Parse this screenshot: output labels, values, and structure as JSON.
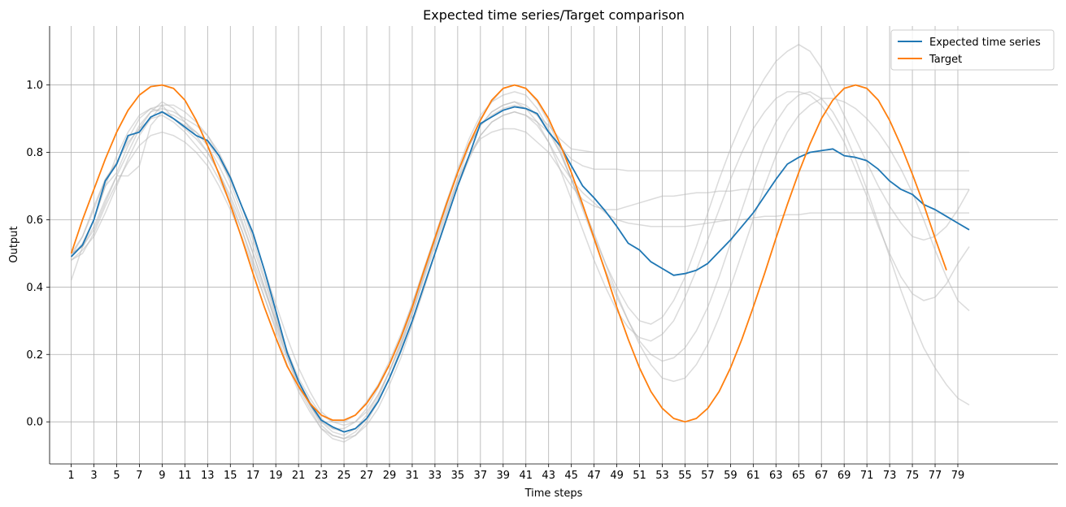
{
  "chart_data": {
    "type": "line",
    "title": "Expected time series/Target comparison",
    "xlabel": "Time steps",
    "ylabel": "Output",
    "xlim": [
      -0.9,
      87.8
    ],
    "ylim": [
      -0.125,
      1.175
    ],
    "grid": true,
    "legend_position": "top-right",
    "x_ticks": [
      1,
      3,
      5,
      7,
      9,
      11,
      13,
      15,
      17,
      19,
      21,
      23,
      25,
      27,
      29,
      31,
      33,
      35,
      37,
      39,
      41,
      43,
      45,
      47,
      49,
      51,
      53,
      55,
      57,
      59,
      61,
      63,
      65,
      67,
      69,
      71,
      73,
      75,
      77,
      79
    ],
    "y_ticks": [
      0.0,
      0.2,
      0.4,
      0.6,
      0.8,
      1.0
    ],
    "y_tick_labels": [
      "0.0",
      "0.2",
      "0.4",
      "0.6",
      "0.8",
      "1.0"
    ],
    "series": [
      {
        "name": "Expected time series",
        "color": "#1f77b4",
        "x_start": 1,
        "values": [
          0.49,
          0.525,
          0.6,
          0.715,
          0.765,
          0.85,
          0.86,
          0.905,
          0.92,
          0.9,
          0.875,
          0.85,
          0.835,
          0.79,
          0.725,
          0.64,
          0.56,
          0.45,
          0.33,
          0.205,
          0.12,
          0.055,
          0.005,
          -0.015,
          -0.03,
          -0.02,
          0.01,
          0.06,
          0.13,
          0.21,
          0.3,
          0.4,
          0.5,
          0.6,
          0.7,
          0.79,
          0.885,
          0.905,
          0.925,
          0.935,
          0.93,
          0.915,
          0.86,
          0.82,
          0.76,
          0.7,
          0.665,
          0.625,
          0.58,
          0.53,
          0.51,
          0.475,
          0.455,
          0.435,
          0.44,
          0.45,
          0.47,
          0.505,
          0.54,
          0.58,
          0.62,
          0.67,
          0.72,
          0.765,
          0.785,
          0.8,
          0.805,
          0.81,
          0.79,
          0.785,
          0.775,
          0.75,
          0.715,
          0.69,
          0.675,
          0.645,
          0.63,
          0.61,
          0.59,
          0.57
        ]
      },
      {
        "name": "Target",
        "color": "#ff7f0e",
        "x_start": 1,
        "values": [
          0.5,
          0.6,
          0.69,
          0.78,
          0.86,
          0.925,
          0.97,
          0.995,
          1.0,
          0.99,
          0.955,
          0.895,
          0.82,
          0.735,
          0.645,
          0.545,
          0.44,
          0.34,
          0.25,
          0.165,
          0.105,
          0.055,
          0.02,
          0.005,
          0.005,
          0.02,
          0.055,
          0.105,
          0.17,
          0.25,
          0.34,
          0.445,
          0.545,
          0.645,
          0.74,
          0.825,
          0.895,
          0.955,
          0.99,
          1.0,
          0.99,
          0.955,
          0.9,
          0.825,
          0.74,
          0.645,
          0.545,
          0.445,
          0.34,
          0.245,
          0.16,
          0.09,
          0.04,
          0.01,
          0.0,
          0.01,
          0.04,
          0.09,
          0.16,
          0.245,
          0.34,
          0.44,
          0.545,
          0.645,
          0.74,
          0.825,
          0.9,
          0.955,
          0.99,
          1.0,
          0.99,
          0.955,
          0.895,
          0.82,
          0.735,
          0.645,
          0.545,
          0.45
        ]
      }
    ],
    "background_samples": [
      {
        "x_start": 1,
        "values": [
          0.5,
          0.55,
          0.64,
          0.72,
          0.77,
          0.84,
          0.9,
          0.93,
          0.92,
          0.91,
          0.89,
          0.86,
          0.82,
          0.76,
          0.69,
          0.6,
          0.5,
          0.4,
          0.29,
          0.19,
          0.1,
          0.04,
          -0.02,
          -0.04,
          -0.05,
          -0.03,
          0.01,
          0.07,
          0.15,
          0.24,
          0.34,
          0.44,
          0.54,
          0.64,
          0.74,
          0.82,
          0.88,
          0.91,
          0.93,
          0.94,
          0.93,
          0.91,
          0.88,
          0.84,
          0.81,
          0.805,
          0.8,
          0.8,
          0.8,
          0.8,
          0.8,
          0.8,
          0.8,
          0.8,
          0.8,
          0.8,
          0.8,
          0.8,
          0.8,
          0.8,
          0.8,
          0.8,
          0.8,
          0.8,
          0.8,
          0.8,
          0.8,
          0.8,
          0.8,
          0.8,
          0.8,
          0.8,
          0.8,
          0.8,
          0.8,
          0.8,
          0.8,
          0.8,
          0.8,
          0.8
        ]
      },
      {
        "x_start": 1,
        "values": [
          0.42,
          0.52,
          0.6,
          0.7,
          0.74,
          0.82,
          0.88,
          0.92,
          0.93,
          0.92,
          0.9,
          0.88,
          0.85,
          0.8,
          0.73,
          0.64,
          0.54,
          0.43,
          0.32,
          0.21,
          0.12,
          0.06,
          0.01,
          -0.02,
          -0.03,
          -0.02,
          0.01,
          0.06,
          0.13,
          0.21,
          0.3,
          0.4,
          0.5,
          0.6,
          0.7,
          0.78,
          0.85,
          0.89,
          0.91,
          0.92,
          0.91,
          0.89,
          0.86,
          0.82,
          0.78,
          0.76,
          0.75,
          0.75,
          0.75,
          0.745,
          0.745,
          0.745,
          0.745,
          0.745,
          0.745,
          0.745,
          0.745,
          0.745,
          0.745,
          0.745,
          0.745,
          0.745,
          0.745,
          0.745,
          0.745,
          0.745,
          0.745,
          0.745,
          0.745,
          0.745,
          0.745,
          0.745,
          0.745,
          0.745,
          0.745,
          0.745,
          0.745,
          0.745,
          0.745,
          0.745
        ]
      },
      {
        "x_start": 1,
        "values": [
          0.49,
          0.53,
          0.6,
          0.7,
          0.79,
          0.86,
          0.91,
          0.93,
          0.94,
          0.9,
          0.87,
          0.84,
          0.8,
          0.74,
          0.67,
          0.59,
          0.5,
          0.4,
          0.3,
          0.2,
          0.11,
          0.05,
          0.0,
          -0.03,
          -0.04,
          -0.02,
          0.02,
          0.08,
          0.15,
          0.23,
          0.32,
          0.42,
          0.52,
          0.62,
          0.71,
          0.79,
          0.85,
          0.89,
          0.91,
          0.92,
          0.91,
          0.88,
          0.83,
          0.77,
          0.72,
          0.68,
          0.65,
          0.62,
          0.6,
          0.59,
          0.585,
          0.58,
          0.58,
          0.58,
          0.58,
          0.585,
          0.59,
          0.595,
          0.6,
          0.6,
          0.605,
          0.61,
          0.61,
          0.615,
          0.615,
          0.62,
          0.62,
          0.62,
          0.62,
          0.62,
          0.62,
          0.62,
          0.62,
          0.62,
          0.62,
          0.62,
          0.62,
          0.62,
          0.62,
          0.62
        ]
      },
      {
        "x_start": 1,
        "values": [
          0.5,
          0.52,
          0.57,
          0.65,
          0.73,
          0.8,
          0.87,
          0.92,
          0.95,
          0.93,
          0.89,
          0.85,
          0.8,
          0.74,
          0.66,
          0.57,
          0.47,
          0.37,
          0.27,
          0.17,
          0.09,
          0.03,
          -0.02,
          -0.05,
          -0.06,
          -0.04,
          0.0,
          0.06,
          0.13,
          0.22,
          0.32,
          0.43,
          0.54,
          0.65,
          0.75,
          0.84,
          0.91,
          0.95,
          0.97,
          0.98,
          0.97,
          0.93,
          0.87,
          0.8,
          0.72,
          0.64,
          0.56,
          0.47,
          0.38,
          0.3,
          0.23,
          0.17,
          0.13,
          0.12,
          0.13,
          0.17,
          0.23,
          0.31,
          0.4,
          0.5,
          0.6,
          0.7,
          0.79,
          0.86,
          0.91,
          0.94,
          0.96,
          0.96,
          0.95,
          0.93,
          0.9,
          0.86,
          0.81,
          0.75,
          0.68,
          0.6,
          0.51,
          0.43,
          0.36,
          0.33
        ]
      },
      {
        "x_start": 1,
        "values": [
          0.48,
          0.51,
          0.55,
          0.62,
          0.7,
          0.78,
          0.85,
          0.9,
          0.94,
          0.94,
          0.92,
          0.89,
          0.85,
          0.79,
          0.71,
          0.62,
          0.52,
          0.42,
          0.31,
          0.21,
          0.12,
          0.05,
          -0.01,
          -0.04,
          -0.05,
          -0.04,
          -0.01,
          0.04,
          0.11,
          0.19,
          0.29,
          0.39,
          0.5,
          0.61,
          0.72,
          0.82,
          0.9,
          0.95,
          0.99,
          1.0,
          0.99,
          0.95,
          0.89,
          0.81,
          0.72,
          0.63,
          0.54,
          0.45,
          0.37,
          0.3,
          0.24,
          0.2,
          0.18,
          0.19,
          0.22,
          0.27,
          0.34,
          0.43,
          0.53,
          0.63,
          0.73,
          0.82,
          0.89,
          0.94,
          0.97,
          0.98,
          0.96,
          0.92,
          0.86,
          0.78,
          0.69,
          0.59,
          0.49,
          0.39,
          0.3,
          0.22,
          0.16,
          0.11,
          0.07,
          0.05
        ]
      },
      {
        "x_start": 1,
        "values": [
          0.49,
          0.55,
          0.63,
          0.72,
          0.77,
          0.83,
          0.87,
          0.9,
          0.91,
          0.89,
          0.86,
          0.82,
          0.78,
          0.72,
          0.65,
          0.57,
          0.48,
          0.39,
          0.3,
          0.21,
          0.13,
          0.07,
          0.02,
          0.0,
          0.0,
          0.02,
          0.06,
          0.11,
          0.18,
          0.26,
          0.35,
          0.45,
          0.55,
          0.65,
          0.74,
          0.82,
          0.88,
          0.92,
          0.94,
          0.95,
          0.93,
          0.89,
          0.83,
          0.75,
          0.66,
          0.57,
          0.48,
          0.4,
          0.33,
          0.28,
          0.25,
          0.24,
          0.26,
          0.3,
          0.37,
          0.45,
          0.54,
          0.63,
          0.72,
          0.8,
          0.87,
          0.92,
          0.96,
          0.98,
          0.98,
          0.97,
          0.94,
          0.89,
          0.83,
          0.75,
          0.67,
          0.58,
          0.5,
          0.43,
          0.38,
          0.36,
          0.37,
          0.41,
          0.47,
          0.52
        ]
      },
      {
        "x_start": 1,
        "values": [
          0.5,
          0.52,
          0.58,
          0.66,
          0.73,
          0.73,
          0.76,
          0.88,
          0.92,
          0.9,
          0.88,
          0.86,
          0.83,
          0.78,
          0.72,
          0.64,
          0.55,
          0.45,
          0.35,
          0.25,
          0.16,
          0.09,
          0.03,
          0.0,
          -0.01,
          0.0,
          0.03,
          0.08,
          0.15,
          0.23,
          0.33,
          0.43,
          0.53,
          0.63,
          0.72,
          0.79,
          0.84,
          0.86,
          0.87,
          0.87,
          0.86,
          0.83,
          0.8,
          0.75,
          0.7,
          0.66,
          0.64,
          0.63,
          0.63,
          0.64,
          0.65,
          0.66,
          0.67,
          0.67,
          0.675,
          0.68,
          0.68,
          0.685,
          0.685,
          0.69,
          0.69,
          0.69,
          0.69,
          0.69,
          0.69,
          0.69,
          0.69,
          0.69,
          0.69,
          0.69,
          0.69,
          0.69,
          0.69,
          0.69,
          0.69,
          0.69,
          0.69,
          0.69,
          0.69,
          0.69
        ]
      },
      {
        "x_start": 1,
        "values": [
          0.48,
          0.5,
          0.56,
          0.64,
          0.71,
          0.77,
          0.82,
          0.85,
          0.86,
          0.85,
          0.83,
          0.8,
          0.76,
          0.7,
          0.63,
          0.55,
          0.46,
          0.37,
          0.28,
          0.19,
          0.11,
          0.05,
          0.0,
          -0.02,
          -0.02,
          0.0,
          0.04,
          0.1,
          0.17,
          0.25,
          0.35,
          0.45,
          0.55,
          0.65,
          0.74,
          0.82,
          0.88,
          0.92,
          0.94,
          0.95,
          0.94,
          0.91,
          0.86,
          0.8,
          0.72,
          0.64,
          0.55,
          0.47,
          0.4,
          0.34,
          0.3,
          0.29,
          0.31,
          0.36,
          0.43,
          0.52,
          0.62,
          0.72,
          0.81,
          0.89,
          0.96,
          1.02,
          1.07,
          1.1,
          1.12,
          1.1,
          1.05,
          0.98,
          0.91,
          0.84,
          0.77,
          0.7,
          0.64,
          0.59,
          0.55,
          0.54,
          0.55,
          0.58,
          0.63,
          0.69
        ]
      }
    ]
  }
}
